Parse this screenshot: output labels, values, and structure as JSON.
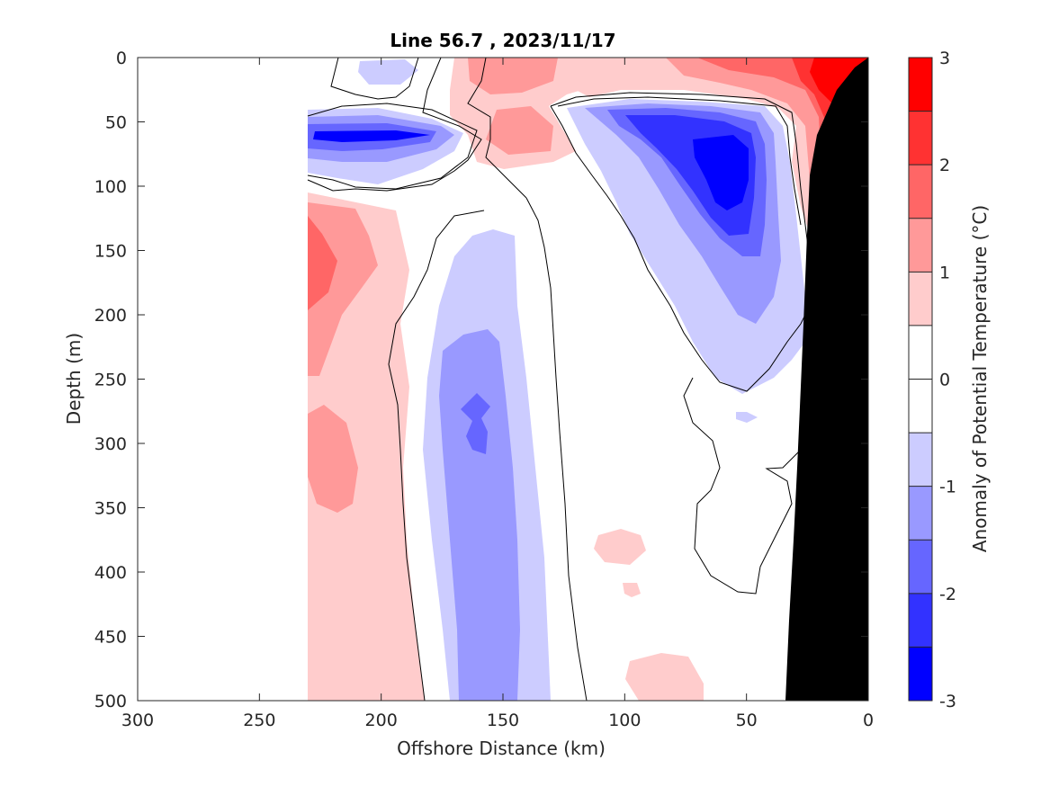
{
  "chart_data": {
    "type": "contour",
    "title": "Line 56.7 , 2023/11/17",
    "xlabel": "Offshore Distance (km)",
    "ylabel": "Depth (m)",
    "xlim": [
      300,
      0
    ],
    "ylim": [
      500,
      0
    ],
    "x_reversed": true,
    "y_reversed": true,
    "x_ticks": [
      "300",
      "250",
      "200",
      "150",
      "100",
      "50",
      "0"
    ],
    "y_ticks": [
      "0",
      "50",
      "100",
      "150",
      "200",
      "250",
      "300",
      "350",
      "400",
      "450",
      "500"
    ],
    "grid": false,
    "data_extent_x_km": [
      0,
      230
    ],
    "contour_levels": [
      -3,
      -2.5,
      -2,
      -1.5,
      -1,
      -0.5,
      0,
      0.5,
      1,
      1.5,
      2,
      2.5,
      3
    ],
    "colorbar": {
      "label": "Anomaly of Potential Temperature (°C)",
      "ticks": [
        "3",
        "2",
        "1",
        "0",
        "-1",
        "-2",
        "-3"
      ],
      "colors": [
        "#ff0000",
        "#ff3232",
        "#ff6666",
        "#ff9999",
        "#ffcccc",
        "#ffffff",
        "#ffffff",
        "#ccccff",
        "#9999ff",
        "#6666ff",
        "#3232ff",
        "#0000ff"
      ]
    },
    "features": [
      {
        "type": "warm-core",
        "anomaly_min": 2.5,
        "x_km": [
          0,
          25
        ],
        "depth_m": [
          0,
          120
        ]
      },
      {
        "type": "cold-core",
        "anomaly_max": -2.5,
        "x_km": [
          45,
          75
        ],
        "depth_m": [
          60,
          120
        ]
      },
      {
        "type": "cold-core",
        "anomaly_max": -2.5,
        "x_km": [
          185,
          225
        ],
        "depth_m": [
          55,
          70
        ]
      },
      {
        "type": "warm-patch",
        "anomaly_min": 1.5,
        "x_km": [
          210,
          230
        ],
        "depth_m": [
          150,
          200
        ]
      },
      {
        "type": "cold-band",
        "anomaly_max": -1.5,
        "x_km": [
          145,
          180
        ],
        "depth_m": [
          230,
          500
        ]
      },
      {
        "type": "warm-patch",
        "anomaly_min": 0.5,
        "x_km": [
          95,
          115
        ],
        "depth_m": [
          370,
          400
        ]
      },
      {
        "type": "shelf-bathymetry",
        "x_km": [
          0,
          33
        ],
        "depth_m": [
          35,
          500
        ]
      }
    ]
  }
}
